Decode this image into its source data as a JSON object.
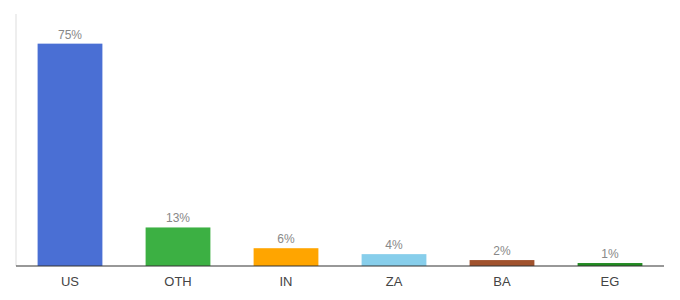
{
  "chart_data": {
    "type": "bar",
    "categories": [
      "US",
      "OTH",
      "IN",
      "ZA",
      "BA",
      "EG"
    ],
    "values": [
      75,
      13,
      6,
      4,
      2,
      1
    ],
    "value_labels": [
      "75%",
      "13%",
      "6%",
      "4%",
      "2%",
      "1%"
    ],
    "colors": [
      "#4A6FD4",
      "#3CB043",
      "#FFA500",
      "#87CEEB",
      "#A0522D",
      "#228B22"
    ],
    "ylim": [
      0,
      85
    ],
    "data_labels": true,
    "grid": false,
    "tick_labels": "x"
  }
}
